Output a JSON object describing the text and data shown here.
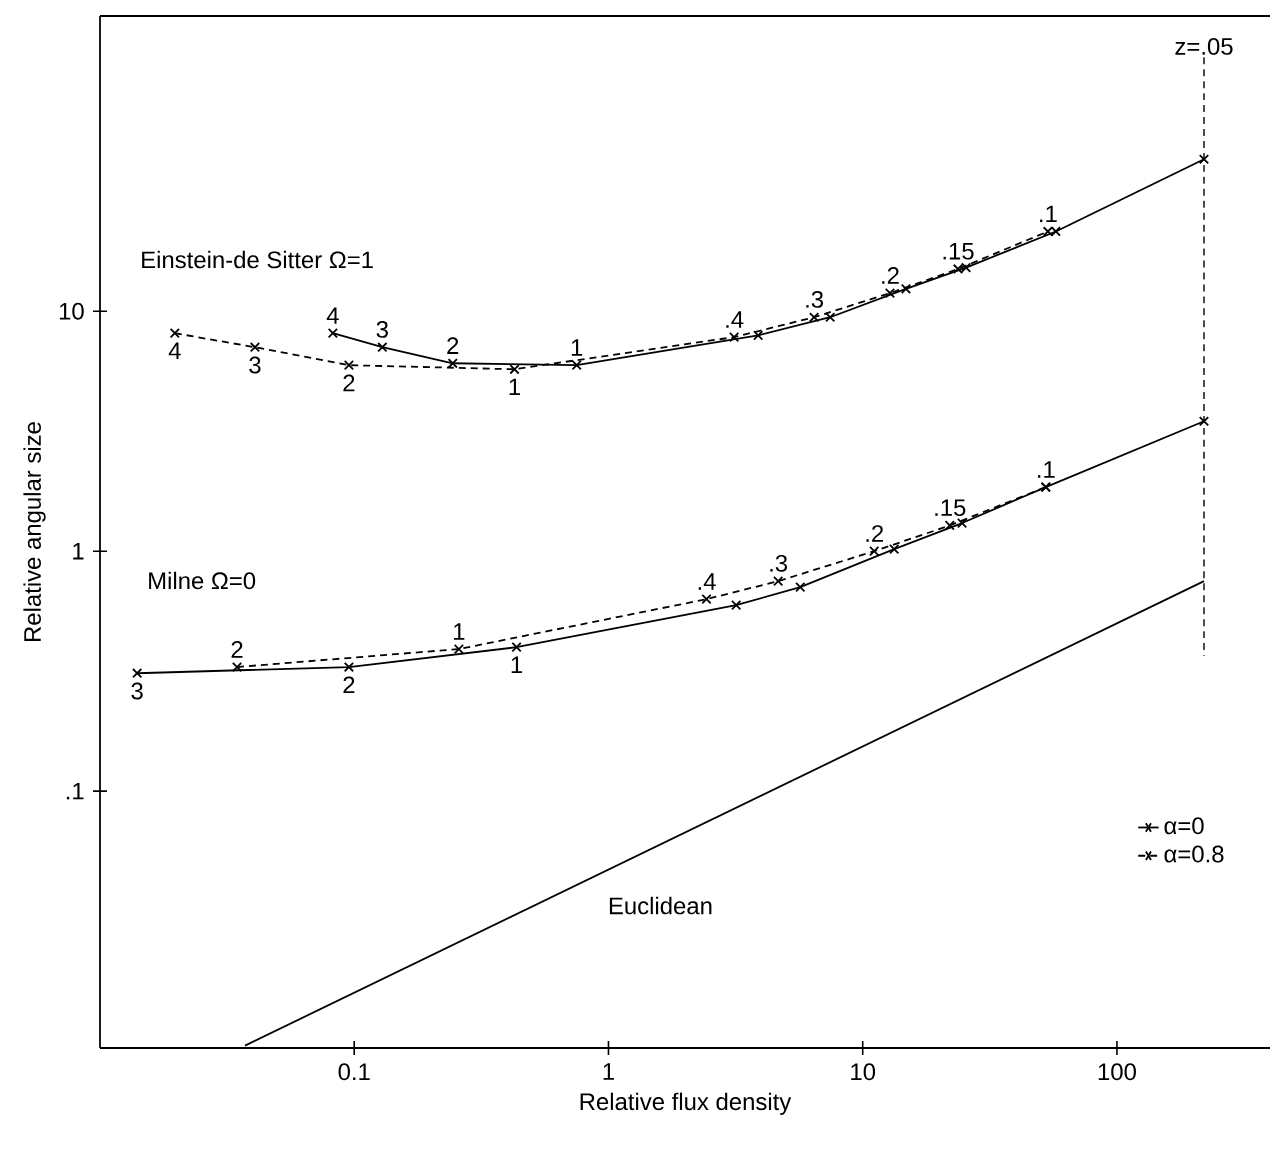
{
  "chart_data": {
    "type": "line",
    "xlabel": "Relative flux density",
    "ylabel": "Relative angular size",
    "log": "xy",
    "xlim": [
      0.01,
      400
    ],
    "ylim": [
      0.0085,
      170
    ],
    "xticks": [
      0.1,
      1,
      10,
      100
    ],
    "yticks": [
      {
        "value": 0.1,
        "label": ".1"
      },
      1,
      10
    ],
    "grid": false,
    "legend": "bottom right",
    "marker": "cross",
    "series": [
      {
        "name": "α=0",
        "color": "#000000",
        "line_style": "solid",
        "x": [
          0.0824,
          0.129,
          0.244,
          0.75,
          3.88,
          7.45,
          14.8,
          25.5,
          57.5,
          220
        ],
        "values": [
          8.1,
          7.08,
          6.07,
          5.96,
          7.94,
          9.44,
          12.4,
          15.2,
          21.5,
          43
        ]
      },
      {
        "name": "α=0.8",
        "color": "#000000",
        "line_style": "dashed",
        "x": [
          0.0197,
          0.0407,
          0.0953,
          0.427,
          3.12,
          6.44,
          12.8,
          23.7,
          53.5
        ],
        "values": [
          8.1,
          7.08,
          5.96,
          5.73,
          7.8,
          9.44,
          11.9,
          15.0,
          21.5
        ]
      },
      {
        "color": "#000000",
        "line_style": "solid",
        "x": [
          0.014,
          0.0953,
          0.435,
          3.18,
          5.68,
          13.3,
          24.6,
          52.5,
          220
        ],
        "values": [
          0.31,
          0.329,
          0.398,
          0.596,
          0.708,
          1.02,
          1.31,
          1.85,
          3.48
        ]
      },
      {
        "color": "#000000",
        "line_style": "dashed",
        "x": [
          0.0346,
          0.258,
          2.43,
          4.65,
          11.1,
          22.0,
          52.5
        ],
        "values": [
          0.329,
          0.391,
          0.631,
          0.75,
          1.0,
          1.28,
          1.85
        ]
      },
      {
        "color": "#000000",
        "line_style": "solid",
        "marker": "none",
        "x": [
          0.0372,
          220
        ],
        "values": [
          0.0087,
          0.75
        ]
      }
    ],
    "ref_lines": [
      {
        "axis": "x",
        "value": 220,
        "label": "z=.05",
        "line_style": "dashed",
        "color": "#000000"
      }
    ],
    "annotations": [
      {
        "text": "4",
        "x": 0.0197,
        "y": 8.1
      },
      {
        "text": "3",
        "x": 0.0407,
        "y": 7.08
      },
      {
        "text": "2",
        "x": 0.0953,
        "y": 5.96
      },
      {
        "text": "1",
        "x": 0.427,
        "y": 5.73
      },
      {
        "text": "4",
        "x": 0.0824,
        "y": 8.1
      },
      {
        "text": "3",
        "x": 0.129,
        "y": 7.08
      },
      {
        "text": "2",
        "x": 0.244,
        "y": 6.07
      },
      {
        "text": "1",
        "x": 0.75,
        "y": 5.96
      },
      {
        "text": ".4",
        "x": 3.12,
        "y": 7.8
      },
      {
        "text": ".3",
        "x": 6.44,
        "y": 9.44
      },
      {
        "text": ".2",
        "x": 12.8,
        "y": 11.9
      },
      {
        "text": ".15",
        "x": 23.7,
        "y": 15.0
      },
      {
        "text": ".1",
        "x": 53.5,
        "y": 21.5
      },
      {
        "text": "3",
        "x": 0.014,
        "y": 0.31
      },
      {
        "text": "2",
        "x": 0.0953,
        "y": 0.329
      },
      {
        "text": "1",
        "x": 0.435,
        "y": 0.398
      },
      {
        "text": "2",
        "x": 0.0346,
        "y": 0.329
      },
      {
        "text": "1",
        "x": 0.258,
        "y": 0.391
      },
      {
        "text": ".4",
        "x": 2.43,
        "y": 0.631
      },
      {
        "text": ".3",
        "x": 4.65,
        "y": 0.75
      },
      {
        "text": ".2",
        "x": 11.1,
        "y": 1.0
      },
      {
        "text": ".15",
        "x": 22.0,
        "y": 1.28
      },
      {
        "text": ".1",
        "x": 52.5,
        "y": 1.85
      },
      "Einstein-de Sitter Ω=1",
      "Milne Ω=0",
      "Euclidean"
    ]
  }
}
